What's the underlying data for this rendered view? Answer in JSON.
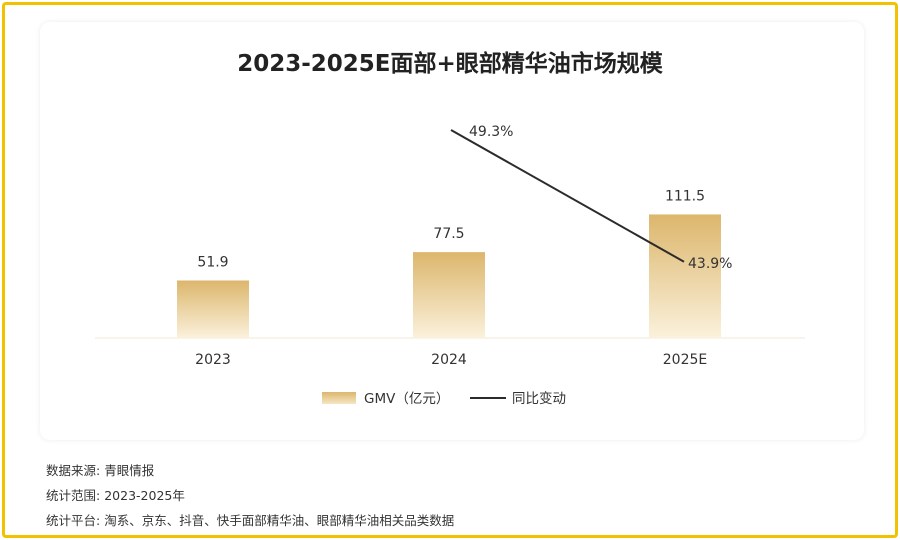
{
  "chart_data": {
    "type": "bar",
    "title": "2023-2025E面部+眼部精华油市场规模",
    "categories": [
      "2023",
      "2024",
      "2025E"
    ],
    "series": [
      {
        "name": "GMV（亿元）",
        "type": "bar",
        "values": [
          51.9,
          77.5,
          111.5
        ]
      },
      {
        "name": "同比变动",
        "type": "line",
        "values": [
          null,
          49.3,
          43.9
        ],
        "labels": [
          "",
          "49.3%",
          "43.9%"
        ]
      }
    ],
    "bar_color": "#e2be78",
    "line_color": "#2b2b2b"
  },
  "notes": [
    {
      "label": "数据来源:",
      "value": "青眼情报"
    },
    {
      "label": "统计范围:",
      "value": "2023-2025年"
    },
    {
      "label": "统计平台:",
      "value": "淘系、京东、抖音、快手面部精华油、眼部精华油相关品类数据"
    }
  ]
}
